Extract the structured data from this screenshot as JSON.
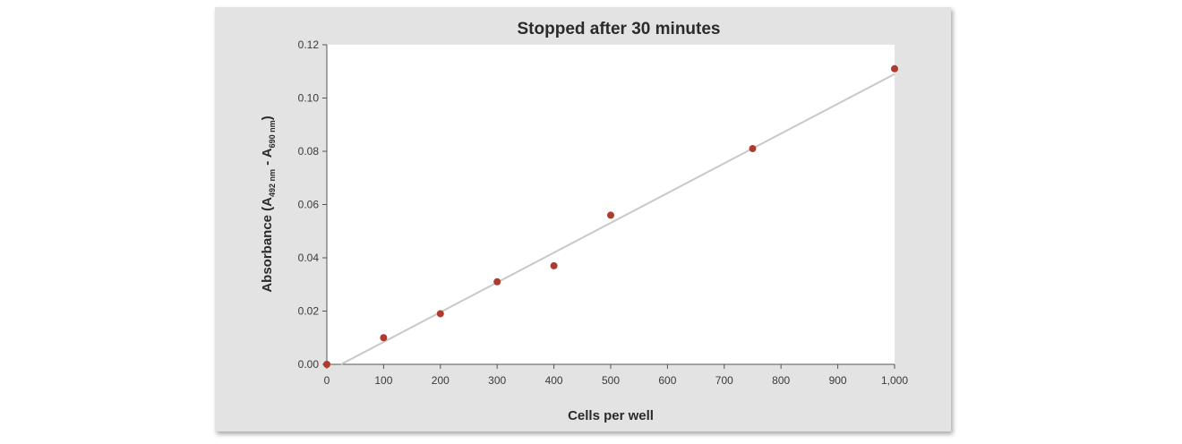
{
  "chart_data": {
    "type": "scatter",
    "title": "Stopped after 30 minutes",
    "xlabel": "Cells per well",
    "ylabel": {
      "prefix": "Absorbance (A",
      "sub1": "492 nm",
      "middle": " - A",
      "sub2": "690 nm",
      "suffix": ")"
    },
    "x_ticks": [
      0,
      100,
      200,
      300,
      400,
      500,
      600,
      700,
      800,
      900,
      1000
    ],
    "x_tick_labels": [
      "0",
      "100",
      "200",
      "300",
      "400",
      "500",
      "600",
      "700",
      "800",
      "900",
      "1,000"
    ],
    "y_ticks": [
      0,
      0.02,
      0.04,
      0.06,
      0.08,
      0.1,
      0.12
    ],
    "y_tick_labels": [
      "0.00",
      "0.02",
      "0.04",
      "0.06",
      "0.08",
      "0.10",
      "0.12"
    ],
    "xlim": [
      0,
      1000
    ],
    "ylim": [
      0,
      0.12
    ],
    "grid": false,
    "series": [
      {
        "x": [
          0,
          100,
          200,
          300,
          400,
          500,
          750,
          1000
        ],
        "y": [
          0.0,
          0.01,
          0.019,
          0.031,
          0.037,
          0.056,
          0.081,
          0.111
        ],
        "color": "#b03a2e"
      }
    ],
    "trendline": {
      "x": [
        25,
        1000
      ],
      "y": [
        0.0,
        0.109
      ],
      "color": "#c8c8c8"
    }
  }
}
